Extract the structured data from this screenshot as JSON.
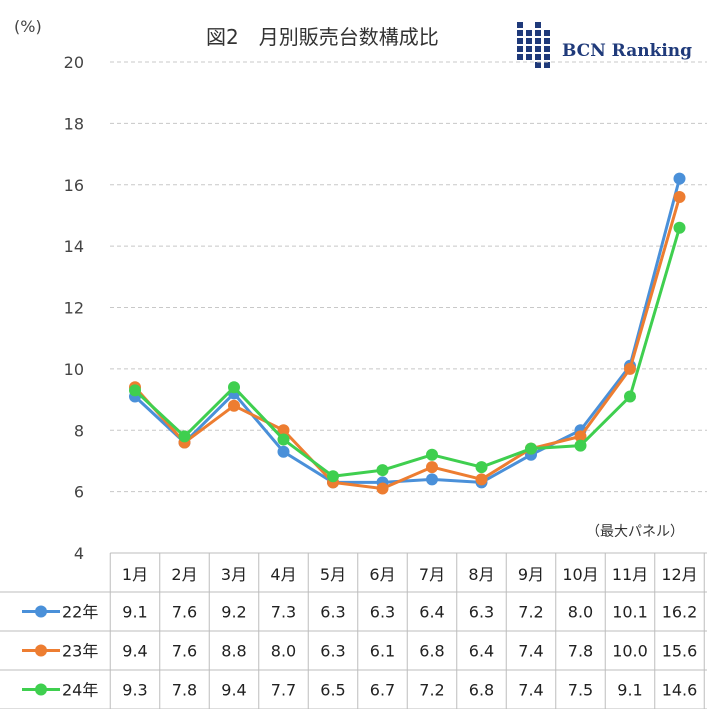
{
  "chart_data": {
    "type": "line",
    "title": "図2　月別販売台数構成比",
    "ylabel": "(%)",
    "note": "（最大パネル）",
    "ylim": [
      4,
      20
    ],
    "yticks": [
      4,
      6,
      8,
      10,
      12,
      14,
      16,
      18,
      20
    ],
    "grid": true,
    "legend": "bottom-left table",
    "categories": [
      "1月",
      "2月",
      "3月",
      "4月",
      "5月",
      "6月",
      "7月",
      "8月",
      "9月",
      "10月",
      "11月",
      "12月"
    ],
    "series": [
      {
        "name": "22年",
        "color": "#4a90d9",
        "values": [
          9.1,
          7.6,
          9.2,
          7.3,
          6.3,
          6.3,
          6.4,
          6.3,
          7.2,
          8.0,
          10.1,
          16.2
        ]
      },
      {
        "name": "23年",
        "color": "#ed7d31",
        "values": [
          9.4,
          7.6,
          8.8,
          8.0,
          6.3,
          6.1,
          6.8,
          6.4,
          7.4,
          7.8,
          10.0,
          15.6
        ]
      },
      {
        "name": "24年",
        "color": "#3fcf4f",
        "values": [
          9.3,
          7.8,
          9.4,
          7.7,
          6.5,
          6.7,
          7.2,
          6.8,
          7.4,
          7.5,
          9.1,
          14.6
        ]
      }
    ],
    "table_values": [
      [
        "9.1",
        "7.6",
        "9.2",
        "7.3",
        "6.3",
        "6.3",
        "6.4",
        "6.3",
        "7.2",
        "8.0",
        "10.1",
        "16.2"
      ],
      [
        "9.4",
        "7.6",
        "8.8",
        "8.0",
        "6.3",
        "6.1",
        "6.8",
        "6.4",
        "7.4",
        "7.8",
        "10.0",
        "15.6"
      ],
      [
        "9.3",
        "7.8",
        "9.4",
        "7.7",
        "6.5",
        "6.7",
        "7.2",
        "6.8",
        "7.4",
        "7.5",
        "9.1",
        "14.6"
      ]
    ]
  },
  "logo": {
    "text": "BCN Ranking",
    "color": "#1f3a7a"
  }
}
